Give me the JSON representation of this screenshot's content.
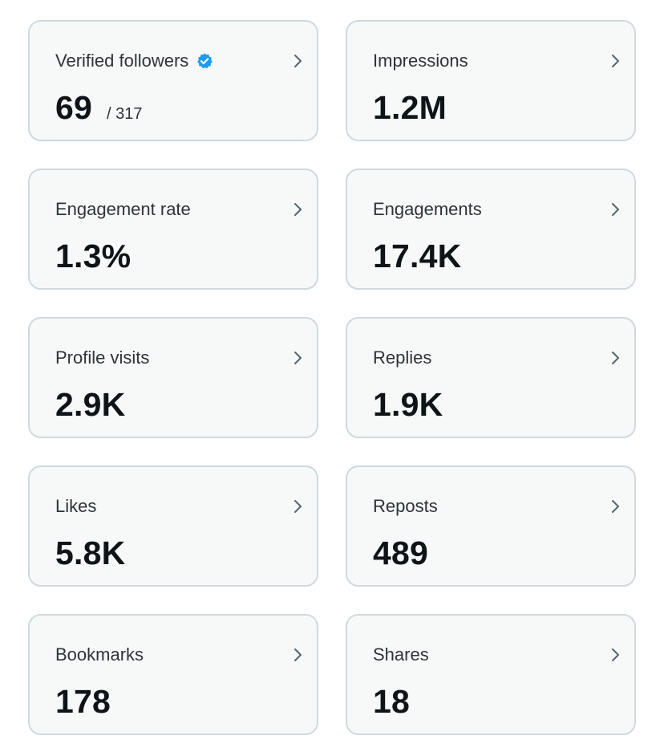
{
  "colors": {
    "card_background": "#f7f9f9",
    "card_border": "#cfd9de",
    "value_text": "#0f1419",
    "label_text": "#2f3336",
    "verified_badge": "#1d9bf0",
    "chevron": "#536471"
  },
  "cards": [
    {
      "label": "Verified followers",
      "value": "69",
      "sub": "/ 317",
      "badge_icon": "verified-badge-icon"
    },
    {
      "label": "Impressions",
      "value": "1.2M"
    },
    {
      "label": "Engagement rate",
      "value": "1.3%"
    },
    {
      "label": "Engagements",
      "value": "17.4K"
    },
    {
      "label": "Profile visits",
      "value": "2.9K"
    },
    {
      "label": "Replies",
      "value": "1.9K"
    },
    {
      "label": "Likes",
      "value": "5.8K"
    },
    {
      "label": "Reposts",
      "value": "489"
    },
    {
      "label": "Bookmarks",
      "value": "178"
    },
    {
      "label": "Shares",
      "value": "18"
    }
  ],
  "card_icon": "chevron-right-icon"
}
